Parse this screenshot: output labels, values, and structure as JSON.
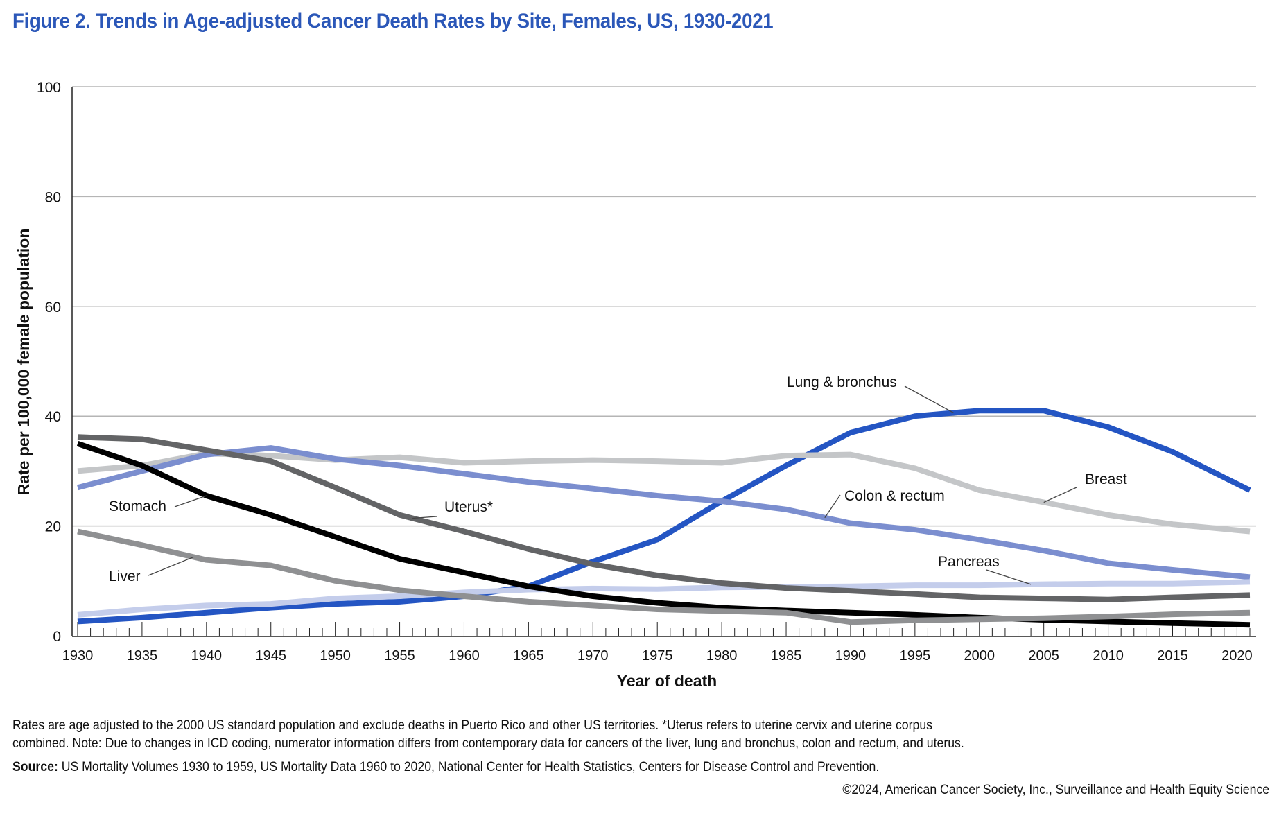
{
  "title": "Figure 2. Trends in Age-adjusted Cancer Death Rates by Site, Females, US, 1930-2021",
  "footnotes": {
    "line1": "Rates are age adjusted to the 2000 US standard population and exclude deaths in Puerto Rico and other US territories. *Uterus refers to uterine cervix and uterine corpus",
    "line2": "combined. Note: Due to changes in ICD coding, numerator information differs from contemporary data for cancers of the liver, lung and bronchus, colon and rectum, and uterus.",
    "source_label": "Source:",
    "source_text": " US Mortality Volumes 1930 to 1959, US Mortality Data 1960 to 2020, National Center for Health Statistics, Centers for Disease Control and Prevention.",
    "copyright": "©2024, American Cancer Society, Inc., Surveillance and Health Equity Science"
  },
  "chart_data": {
    "type": "line",
    "title": "Figure 2. Trends in Age-adjusted Cancer Death Rates by Site, Females, US, 1930-2021",
    "xlabel": "Year of death",
    "ylabel": "Rate per 100,000 female population",
    "xlim": [
      1930,
      2021
    ],
    "ylim": [
      0,
      100
    ],
    "x_ticks": [
      1930,
      1935,
      1940,
      1945,
      1950,
      1955,
      1960,
      1965,
      1970,
      1975,
      1980,
      1985,
      1990,
      1995,
      2000,
      2005,
      2010,
      2015,
      2020
    ],
    "y_ticks": [
      0,
      20,
      40,
      60,
      80,
      100
    ],
    "grid": "horizontal",
    "legend": "inline labels",
    "x": [
      1930,
      1935,
      1940,
      1945,
      1950,
      1955,
      1960,
      1965,
      1970,
      1975,
      1980,
      1985,
      1990,
      1995,
      2000,
      2005,
      2010,
      2015,
      2021
    ],
    "series": [
      {
        "name": "Lung & bronchus",
        "label": "Lung & bronchus",
        "color": "#2455c3",
        "width": 8,
        "values": [
          2.6,
          3.3,
          4.2,
          5.1,
          5.8,
          6.2,
          7.2,
          9.0,
          13.5,
          17.5,
          24.5,
          31.0,
          37.0,
          40.0,
          41.0,
          41.0,
          38.0,
          33.5,
          26.5
        ]
      },
      {
        "name": "Breast",
        "label": "Breast",
        "color": "#c4c6c8",
        "width": 8,
        "values": [
          30.0,
          31.0,
          33.2,
          32.8,
          32.0,
          32.5,
          31.5,
          31.8,
          32.0,
          31.8,
          31.5,
          32.8,
          33.0,
          30.5,
          26.5,
          24.3,
          22.0,
          20.3,
          19.0
        ]
      },
      {
        "name": "Colon & rectum",
        "label": "Colon & rectum",
        "color": "#7b8ecf",
        "width": 8,
        "values": [
          27.0,
          30.0,
          33.0,
          34.2,
          32.2,
          31.0,
          29.5,
          28.0,
          26.8,
          25.5,
          24.5,
          23.0,
          20.5,
          19.3,
          17.5,
          15.5,
          13.2,
          12.0,
          10.7
        ]
      },
      {
        "name": "Pancreas",
        "label": "Pancreas",
        "color": "#c4cdeb",
        "width": 8,
        "values": [
          3.8,
          4.8,
          5.5,
          5.8,
          6.8,
          7.2,
          7.9,
          8.4,
          8.6,
          8.5,
          8.8,
          8.9,
          9.0,
          9.2,
          9.2,
          9.4,
          9.5,
          9.5,
          9.8
        ]
      },
      {
        "name": "Uterus*",
        "label": "Uterus*",
        "color": "#636466",
        "width": 8,
        "values": [
          36.2,
          35.8,
          33.8,
          31.8,
          27.0,
          22.0,
          19.0,
          15.8,
          13.0,
          11.0,
          9.6,
          8.7,
          8.2,
          7.6,
          7.0,
          6.8,
          6.6,
          7.0,
          7.4
        ]
      },
      {
        "name": "Stomach",
        "label": "Stomach",
        "color": "#000000",
        "width": 8,
        "values": [
          35.0,
          31.0,
          25.5,
          22.0,
          18.0,
          14.0,
          11.5,
          9.0,
          7.2,
          6.0,
          5.1,
          4.6,
          4.2,
          3.8,
          3.3,
          2.9,
          2.6,
          2.3,
          2.0
        ]
      },
      {
        "name": "Liver",
        "label": "Liver",
        "color": "#8f9092",
        "width": 8,
        "values": [
          19.0,
          16.5,
          13.8,
          12.8,
          10.0,
          8.3,
          7.2,
          6.2,
          5.5,
          4.8,
          4.5,
          4.2,
          2.5,
          2.8,
          3.0,
          3.2,
          3.5,
          3.9,
          4.2
        ]
      }
    ],
    "annotations": [
      {
        "text": "Lung & bronchus",
        "series": "Lung & bronchus",
        "x": 1998
      },
      {
        "text": "Breast",
        "series": "Breast",
        "x": 2005
      },
      {
        "text": "Colon & rectum",
        "series": "Colon & rectum",
        "x": 1988
      },
      {
        "text": "Pancreas",
        "series": "Pancreas",
        "x": 2004
      },
      {
        "text": "Uterus*",
        "series": "Uterus*",
        "x": 1956
      },
      {
        "text": "Stomach",
        "series": "Stomach",
        "x": 1940
      },
      {
        "text": "Liver",
        "series": "Liver",
        "x": 1939
      }
    ]
  }
}
